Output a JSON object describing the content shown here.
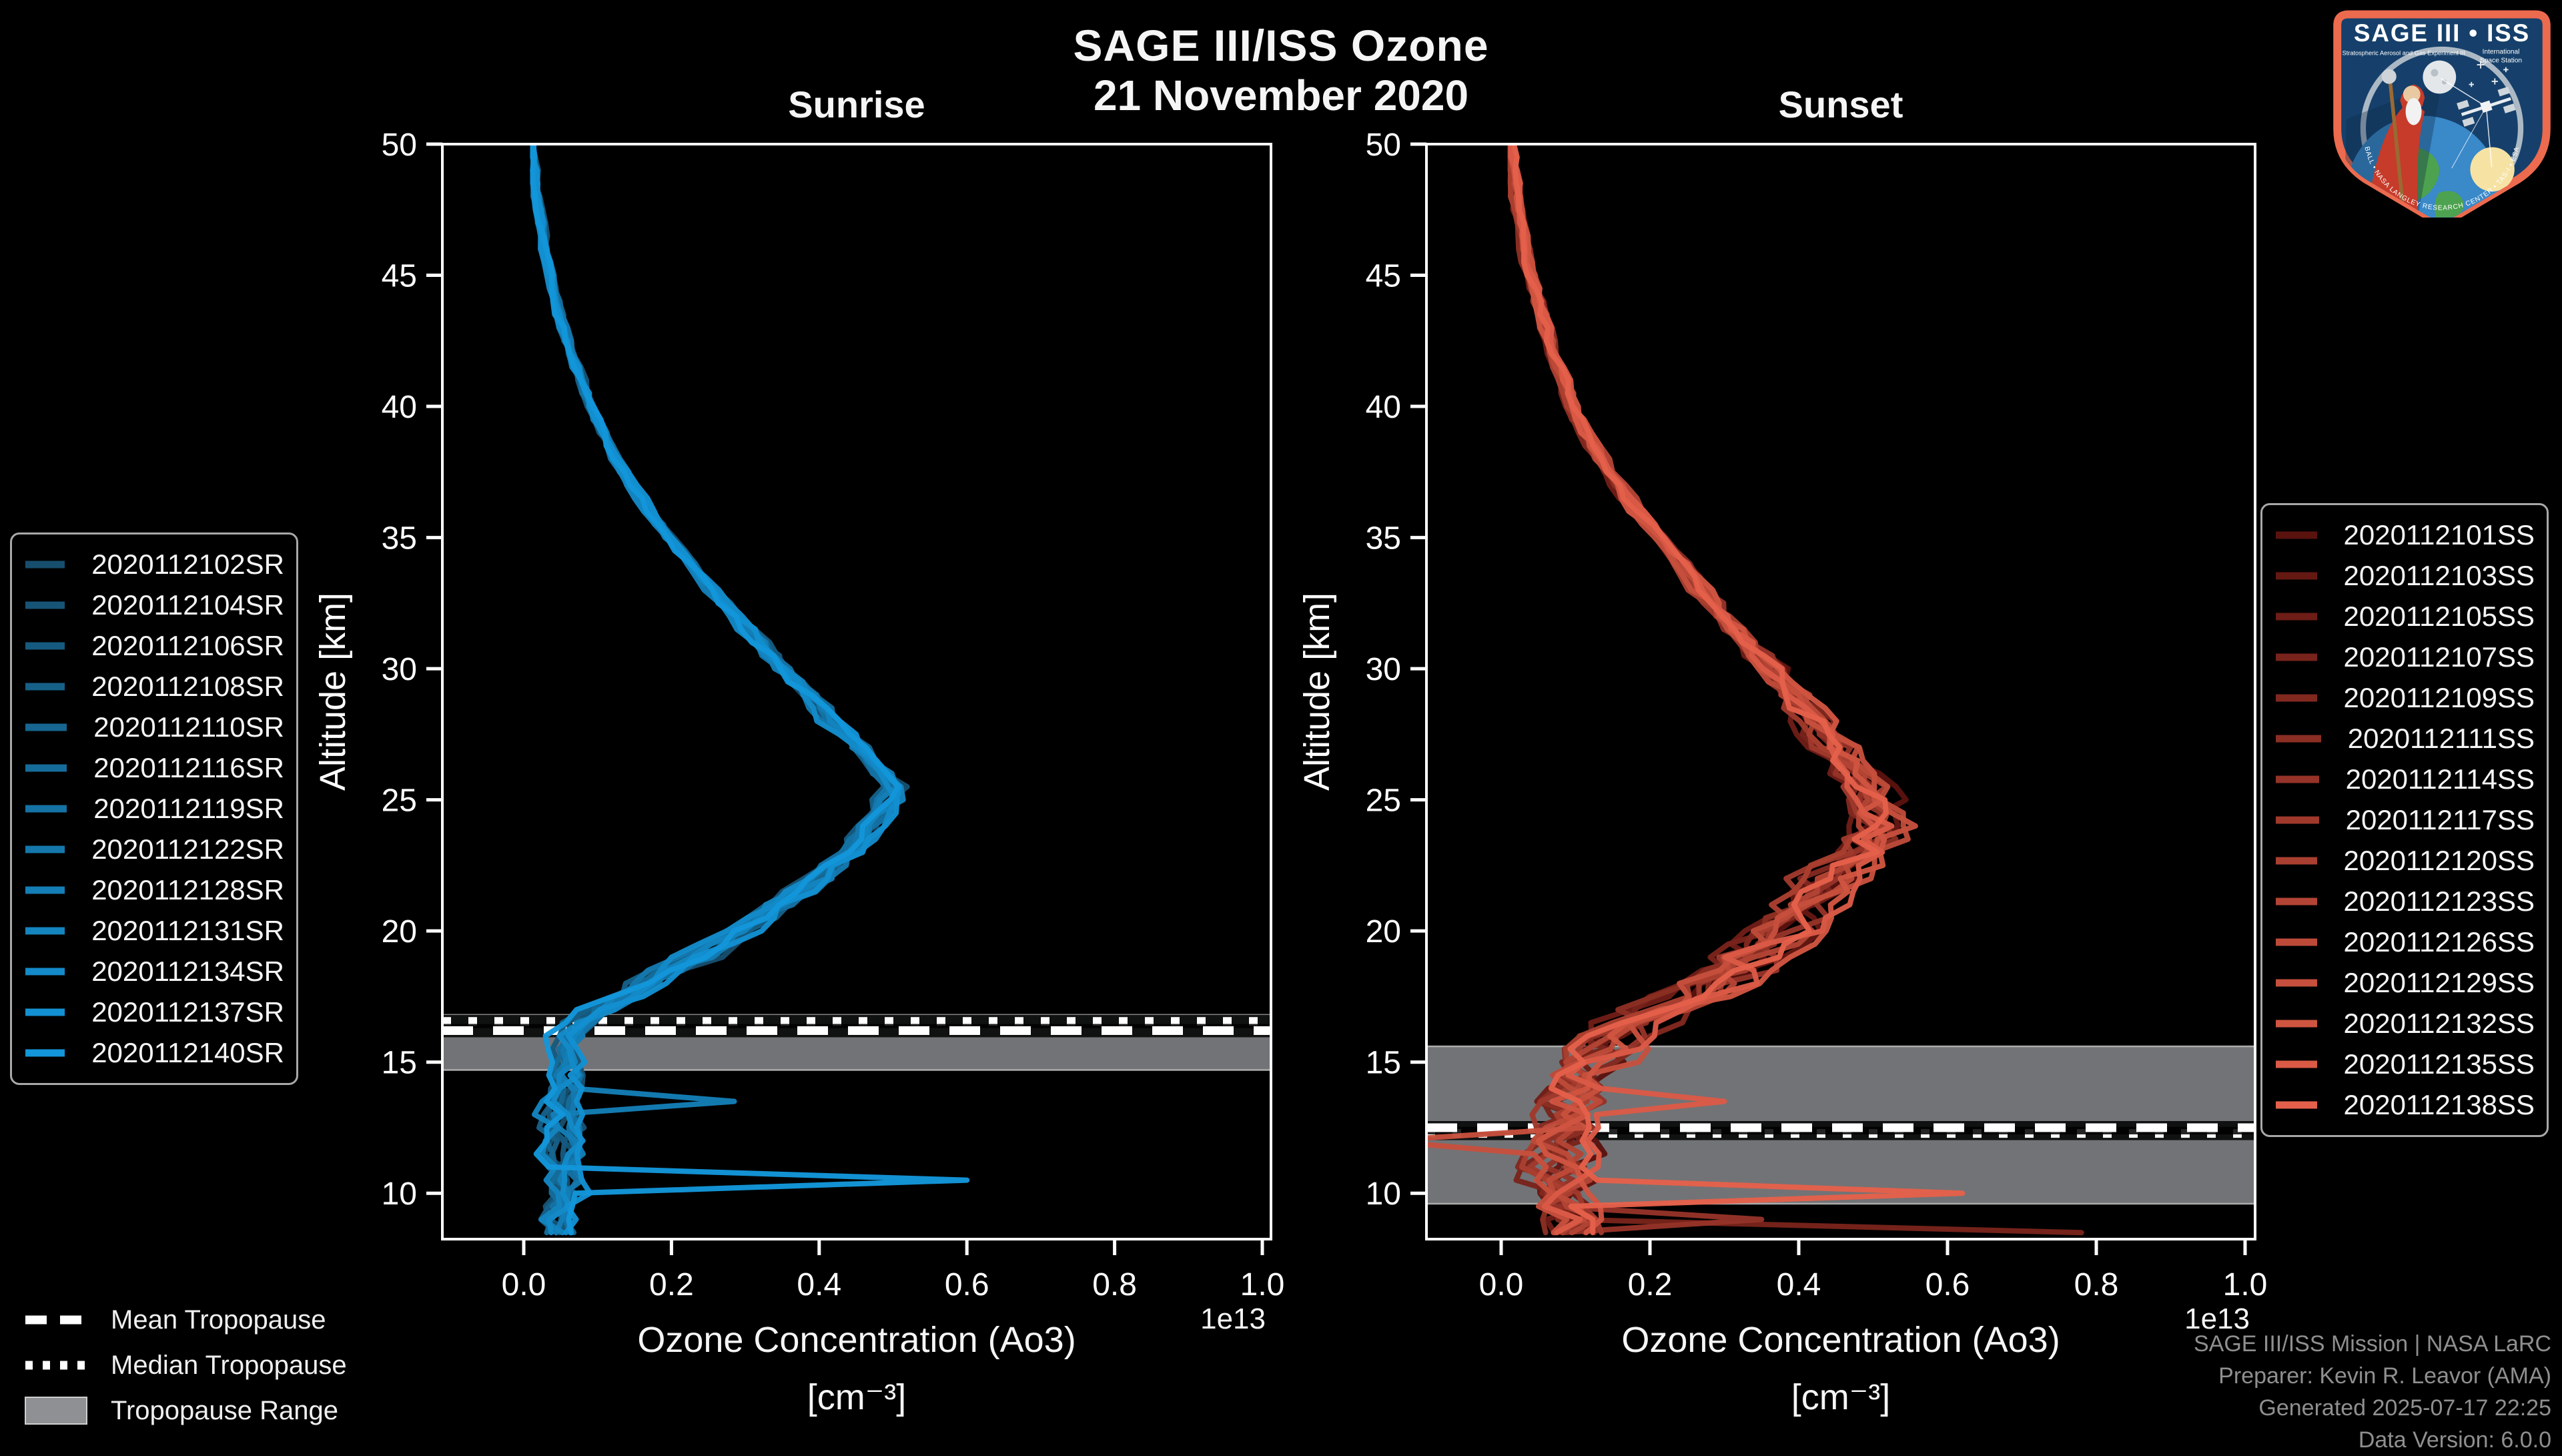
{
  "figure": {
    "title_line1": "SAGE III/ISS Ozone",
    "title_line2": "21 November 2020"
  },
  "panels": [
    {
      "title": "Sunrise",
      "ylabel": "Altitude [km]",
      "xlabel_line1": "Ozone Concentration (Ao3)",
      "xlabel_line2": "[cm⁻³]",
      "offset_label": "1e13"
    },
    {
      "title": "Sunset",
      "ylabel": "Altitude [km]",
      "xlabel_line1": "Ozone Concentration (Ao3)",
      "xlabel_line2": "[cm⁻³]",
      "offset_label": "1e13"
    }
  ],
  "tropopause_legend": {
    "mean": "Mean Tropopause",
    "median": "Median Tropopause",
    "range": "Tropopause Range"
  },
  "attribution": [
    "SAGE III/ISS Mission | NASA LaRC",
    "Preparer: Kevin R. Leavor (AMA)",
    "Generated 2025-07-17 22:25",
    "Data Version: 6.0.0"
  ],
  "logo": {
    "title": "SAGE III • ISS",
    "sub_left": "Stratospheric Aerosol and Gas Experiment III",
    "sub_right_line1": "International",
    "sub_right_line2": "Space Station",
    "ring_text": "BALL • NASA LANGLEY RESEARCH CENTER • TAS-I • ESA"
  },
  "colors": {
    "background": "#000000",
    "frame": "#ffffff",
    "tropopause_band": "#8f9094",
    "tropopause_line": "#ffffff",
    "sunrise_start": "#174e6d",
    "sunrise_end": "#1396da",
    "sunset_start": "#5a120e",
    "sunset_end": "#e4604a",
    "attribution_text": "#8f8f8f",
    "logo_border": "#ec6a4e",
    "logo_field": "#16406b"
  },
  "chart_data": {
    "type": "line",
    "title": "SAGE III/ISS Ozone — 21 November 2020",
    "xlabel": "Ozone Concentration (Ao3) [cm⁻³]",
    "ylabel": "Altitude [km]",
    "x_offset_factor": "1e13",
    "xlim": [
      -0.11,
      1.012
    ],
    "ylim": [
      8.25,
      50
    ],
    "xticks": [
      0.0,
      0.2,
      0.4,
      0.6,
      0.8,
      1.0
    ],
    "xtick_labels": [
      "0.0",
      "0.2",
      "0.4",
      "0.6",
      "0.8",
      "1.0"
    ],
    "yticks": [
      10,
      15,
      20,
      25,
      30,
      35,
      40,
      45,
      50
    ],
    "grid": false,
    "panels": [
      {
        "name": "Sunrise",
        "series": [
          "2020112102SR",
          "2020112104SR",
          "2020112106SR",
          "2020112108SR",
          "2020112110SR",
          "2020112116SR",
          "2020112119SR",
          "2020112122SR",
          "2020112128SR",
          "2020112131SR",
          "2020112134SR",
          "2020112137SR",
          "2020112140SR"
        ],
        "color_start": "#174e6d",
        "color_end": "#1396da",
        "tropopause": {
          "mean_km": 16.2,
          "median_km": 16.55,
          "range_km": [
            14.7,
            16.8
          ]
        },
        "base_profile": {
          "altitude_km": [
            50,
            48,
            46,
            44,
            42,
            40,
            38,
            36,
            34,
            32,
            30,
            29,
            28,
            27,
            26,
            25.5,
            25,
            24,
            23,
            22,
            21,
            20,
            19,
            18,
            17.5,
            17,
            16.5,
            16,
            15,
            14,
            13,
            12,
            11,
            10,
            9,
            8.4
          ],
          "value_1e13": [
            0.01,
            0.018,
            0.028,
            0.045,
            0.065,
            0.09,
            0.125,
            0.17,
            0.225,
            0.285,
            0.35,
            0.385,
            0.415,
            0.45,
            0.48,
            0.5,
            0.495,
            0.47,
            0.44,
            0.4,
            0.35,
            0.295,
            0.235,
            0.165,
            0.135,
            0.1,
            0.075,
            0.06,
            0.05,
            0.055,
            0.05,
            0.055,
            0.05,
            0.055,
            0.05,
            0.055
          ]
        },
        "spread_profile": {
          "altitude_km": [
            50,
            34,
            30,
            26,
            22,
            18,
            8.4
          ],
          "value_1e13": [
            0.005,
            0.008,
            0.015,
            0.02,
            0.025,
            0.028,
            0.028
          ]
        },
        "spikes": [
          {
            "series": 12,
            "altitude_km": 10.7,
            "value_1e13": 0.6
          },
          {
            "series": 8,
            "altitude_km": 13.4,
            "value_1e13": 0.285
          }
        ]
      },
      {
        "name": "Sunset",
        "series": [
          "2020112101SS",
          "2020112103SS",
          "2020112105SS",
          "2020112107SS",
          "2020112109SS",
          "2020112111SS",
          "2020112114SS",
          "2020112117SS",
          "2020112120SS",
          "2020112123SS",
          "2020112126SS",
          "2020112129SS",
          "2020112132SS",
          "2020112135SS",
          "2020112138SS"
        ],
        "color_start": "#5a120e",
        "color_end": "#e4604a",
        "tropopause": {
          "mean_km": 12.5,
          "median_km": 12.28,
          "range_km": [
            9.6,
            15.6
          ]
        },
        "base_profile": {
          "altitude_km": [
            50,
            48,
            46,
            44,
            42,
            40,
            38,
            36,
            34,
            32,
            30,
            28,
            27,
            26,
            25,
            24,
            23,
            22,
            21,
            20,
            19,
            18,
            17,
            16,
            15,
            14,
            13,
            12,
            11,
            10,
            9,
            8.4
          ],
          "value_1e13": [
            0.012,
            0.02,
            0.03,
            0.05,
            0.07,
            0.095,
            0.135,
            0.18,
            0.24,
            0.3,
            0.36,
            0.42,
            0.45,
            0.475,
            0.5,
            0.51,
            0.48,
            0.445,
            0.41,
            0.375,
            0.33,
            0.28,
            0.22,
            0.16,
            0.12,
            0.1,
            0.09,
            0.08,
            0.08,
            0.09,
            0.09,
            0.09
          ]
        },
        "spread_profile": {
          "altitude_km": [
            50,
            34,
            30,
            26,
            22,
            18,
            8.4
          ],
          "value_1e13": [
            0.006,
            0.012,
            0.022,
            0.035,
            0.05,
            0.055,
            0.05
          ]
        },
        "spikes": [
          {
            "series": 14,
            "altitude_km": 10.2,
            "value_1e13": 0.62
          },
          {
            "series": 3,
            "altitude_km": 8.7,
            "value_1e13": 0.78
          },
          {
            "series": 13,
            "altitude_km": 13.4,
            "value_1e13": 0.3
          },
          {
            "series": 11,
            "altitude_km": 11.9,
            "value_1e13": -0.16
          },
          {
            "series": 6,
            "altitude_km": 8.9,
            "value_1e13": 0.35
          }
        ]
      }
    ]
  }
}
